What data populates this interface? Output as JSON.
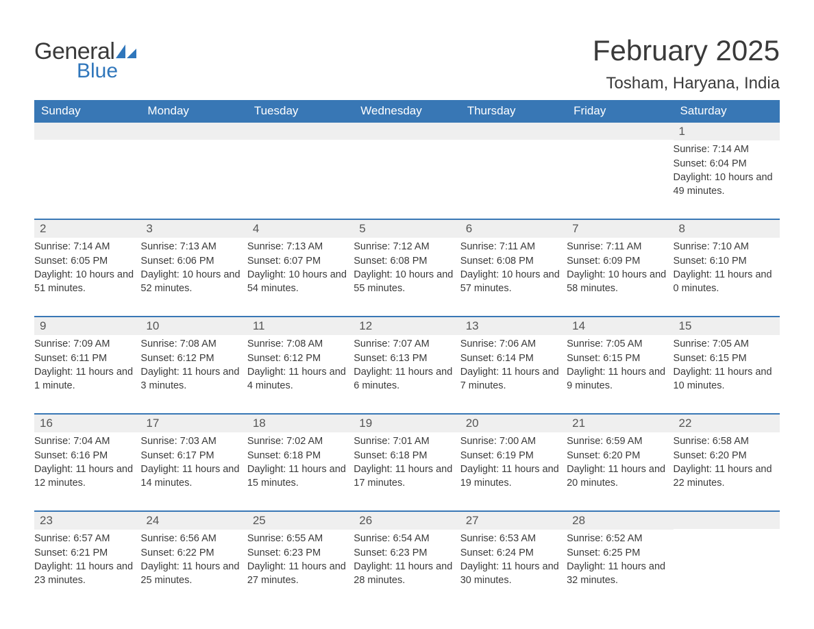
{
  "logo": {
    "general": "General",
    "blue": "Blue"
  },
  "title": {
    "month": "February 2025",
    "location": "Tosham, Haryana, India"
  },
  "colors": {
    "header_bg": "#3877b5",
    "header_text": "#ffffff",
    "daynum_bg": "#efefef",
    "row_divider": "#3877b5",
    "body_text": "#3a3a3a",
    "logo_blue": "#2f76bb"
  },
  "days_of_week": [
    "Sunday",
    "Monday",
    "Tuesday",
    "Wednesday",
    "Thursday",
    "Friday",
    "Saturday"
  ],
  "weeks": [
    [
      {
        "n": "",
        "sr": "",
        "ss": "",
        "dl": ""
      },
      {
        "n": "",
        "sr": "",
        "ss": "",
        "dl": ""
      },
      {
        "n": "",
        "sr": "",
        "ss": "",
        "dl": ""
      },
      {
        "n": "",
        "sr": "",
        "ss": "",
        "dl": ""
      },
      {
        "n": "",
        "sr": "",
        "ss": "",
        "dl": ""
      },
      {
        "n": "",
        "sr": "",
        "ss": "",
        "dl": ""
      },
      {
        "n": "1",
        "sr": "Sunrise: 7:14 AM",
        "ss": "Sunset: 6:04 PM",
        "dl": "Daylight: 10 hours and 49 minutes."
      }
    ],
    [
      {
        "n": "2",
        "sr": "Sunrise: 7:14 AM",
        "ss": "Sunset: 6:05 PM",
        "dl": "Daylight: 10 hours and 51 minutes."
      },
      {
        "n": "3",
        "sr": "Sunrise: 7:13 AM",
        "ss": "Sunset: 6:06 PM",
        "dl": "Daylight: 10 hours and 52 minutes."
      },
      {
        "n": "4",
        "sr": "Sunrise: 7:13 AM",
        "ss": "Sunset: 6:07 PM",
        "dl": "Daylight: 10 hours and 54 minutes."
      },
      {
        "n": "5",
        "sr": "Sunrise: 7:12 AM",
        "ss": "Sunset: 6:08 PM",
        "dl": "Daylight: 10 hours and 55 minutes."
      },
      {
        "n": "6",
        "sr": "Sunrise: 7:11 AM",
        "ss": "Sunset: 6:08 PM",
        "dl": "Daylight: 10 hours and 57 minutes."
      },
      {
        "n": "7",
        "sr": "Sunrise: 7:11 AM",
        "ss": "Sunset: 6:09 PM",
        "dl": "Daylight: 10 hours and 58 minutes."
      },
      {
        "n": "8",
        "sr": "Sunrise: 7:10 AM",
        "ss": "Sunset: 6:10 PM",
        "dl": "Daylight: 11 hours and 0 minutes."
      }
    ],
    [
      {
        "n": "9",
        "sr": "Sunrise: 7:09 AM",
        "ss": "Sunset: 6:11 PM",
        "dl": "Daylight: 11 hours and 1 minute."
      },
      {
        "n": "10",
        "sr": "Sunrise: 7:08 AM",
        "ss": "Sunset: 6:12 PM",
        "dl": "Daylight: 11 hours and 3 minutes."
      },
      {
        "n": "11",
        "sr": "Sunrise: 7:08 AM",
        "ss": "Sunset: 6:12 PM",
        "dl": "Daylight: 11 hours and 4 minutes."
      },
      {
        "n": "12",
        "sr": "Sunrise: 7:07 AM",
        "ss": "Sunset: 6:13 PM",
        "dl": "Daylight: 11 hours and 6 minutes."
      },
      {
        "n": "13",
        "sr": "Sunrise: 7:06 AM",
        "ss": "Sunset: 6:14 PM",
        "dl": "Daylight: 11 hours and 7 minutes."
      },
      {
        "n": "14",
        "sr": "Sunrise: 7:05 AM",
        "ss": "Sunset: 6:15 PM",
        "dl": "Daylight: 11 hours and 9 minutes."
      },
      {
        "n": "15",
        "sr": "Sunrise: 7:05 AM",
        "ss": "Sunset: 6:15 PM",
        "dl": "Daylight: 11 hours and 10 minutes."
      }
    ],
    [
      {
        "n": "16",
        "sr": "Sunrise: 7:04 AM",
        "ss": "Sunset: 6:16 PM",
        "dl": "Daylight: 11 hours and 12 minutes."
      },
      {
        "n": "17",
        "sr": "Sunrise: 7:03 AM",
        "ss": "Sunset: 6:17 PM",
        "dl": "Daylight: 11 hours and 14 minutes."
      },
      {
        "n": "18",
        "sr": "Sunrise: 7:02 AM",
        "ss": "Sunset: 6:18 PM",
        "dl": "Daylight: 11 hours and 15 minutes."
      },
      {
        "n": "19",
        "sr": "Sunrise: 7:01 AM",
        "ss": "Sunset: 6:18 PM",
        "dl": "Daylight: 11 hours and 17 minutes."
      },
      {
        "n": "20",
        "sr": "Sunrise: 7:00 AM",
        "ss": "Sunset: 6:19 PM",
        "dl": "Daylight: 11 hours and 19 minutes."
      },
      {
        "n": "21",
        "sr": "Sunrise: 6:59 AM",
        "ss": "Sunset: 6:20 PM",
        "dl": "Daylight: 11 hours and 20 minutes."
      },
      {
        "n": "22",
        "sr": "Sunrise: 6:58 AM",
        "ss": "Sunset: 6:20 PM",
        "dl": "Daylight: 11 hours and 22 minutes."
      }
    ],
    [
      {
        "n": "23",
        "sr": "Sunrise: 6:57 AM",
        "ss": "Sunset: 6:21 PM",
        "dl": "Daylight: 11 hours and 23 minutes."
      },
      {
        "n": "24",
        "sr": "Sunrise: 6:56 AM",
        "ss": "Sunset: 6:22 PM",
        "dl": "Daylight: 11 hours and 25 minutes."
      },
      {
        "n": "25",
        "sr": "Sunrise: 6:55 AM",
        "ss": "Sunset: 6:23 PM",
        "dl": "Daylight: 11 hours and 27 minutes."
      },
      {
        "n": "26",
        "sr": "Sunrise: 6:54 AM",
        "ss": "Sunset: 6:23 PM",
        "dl": "Daylight: 11 hours and 28 minutes."
      },
      {
        "n": "27",
        "sr": "Sunrise: 6:53 AM",
        "ss": "Sunset: 6:24 PM",
        "dl": "Daylight: 11 hours and 30 minutes."
      },
      {
        "n": "28",
        "sr": "Sunrise: 6:52 AM",
        "ss": "Sunset: 6:25 PM",
        "dl": "Daylight: 11 hours and 32 minutes."
      },
      {
        "n": "",
        "sr": "",
        "ss": "",
        "dl": ""
      }
    ]
  ]
}
